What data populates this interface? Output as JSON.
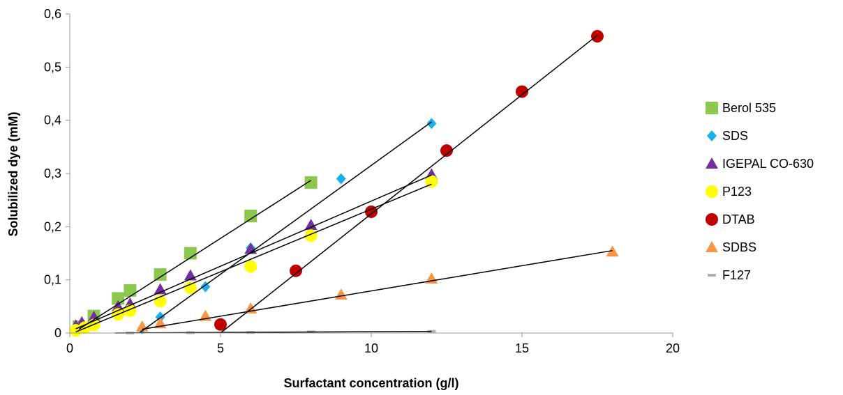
{
  "chart_data": {
    "type": "scatter",
    "title": "",
    "xlabel": "Surfactant concentration (g/l)",
    "ylabel": "Solubilized dye (mM)",
    "xlim": [
      0,
      20
    ],
    "ylim": [
      0,
      0.6
    ],
    "x_ticks": [
      0,
      5,
      10,
      15,
      20
    ],
    "x_tick_labels": [
      "0",
      "5",
      "10",
      "15",
      "20"
    ],
    "y_ticks": [
      0,
      0.1,
      0.2,
      0.3,
      0.4,
      0.5,
      0.6
    ],
    "y_tick_labels": [
      "0",
      "0,1",
      "0,2",
      "0,3",
      "0,4",
      "0,5",
      "0,6"
    ],
    "grid": false,
    "legend_position": "right",
    "series": [
      {
        "name": "Berol 535",
        "marker": "square",
        "color": "#8cc84b",
        "points": [
          [
            0.3,
            0.012
          ],
          [
            0.8,
            0.032
          ],
          [
            1.6,
            0.065
          ],
          [
            2.0,
            0.08
          ],
          [
            3.0,
            0.11
          ],
          [
            4.0,
            0.15
          ],
          [
            6.0,
            0.22
          ],
          [
            8.0,
            0.283
          ]
        ],
        "trendline": [
          [
            0.3,
            0.007
          ],
          [
            8.0,
            0.287
          ]
        ]
      },
      {
        "name": "SDS",
        "marker": "diamond",
        "color": "#1ab0ec",
        "points": [
          [
            2.4,
            0.008
          ],
          [
            3.0,
            0.03
          ],
          [
            4.5,
            0.087
          ],
          [
            6.0,
            0.16
          ],
          [
            9.0,
            0.29
          ],
          [
            12.0,
            0.394
          ]
        ],
        "trendline": [
          [
            2.3,
            0.0
          ],
          [
            12.0,
            0.397
          ]
        ]
      },
      {
        "name": "IGEPAL CO-630",
        "marker": "triangle",
        "color": "#7030a0",
        "points": [
          [
            0.2,
            0.014
          ],
          [
            0.4,
            0.02
          ],
          [
            0.8,
            0.03
          ],
          [
            1.6,
            0.05
          ],
          [
            2.0,
            0.055
          ],
          [
            3.0,
            0.082
          ],
          [
            4.0,
            0.108
          ],
          [
            6.0,
            0.158
          ],
          [
            8.0,
            0.203
          ],
          [
            12.0,
            0.298
          ]
        ],
        "trendline": [
          [
            0.2,
            0.008
          ],
          [
            12.0,
            0.297
          ]
        ]
      },
      {
        "name": "P123",
        "marker": "circle",
        "color": "#ffff00",
        "points": [
          [
            0.2,
            0.005
          ],
          [
            0.5,
            0.01
          ],
          [
            0.8,
            0.015
          ],
          [
            1.6,
            0.035
          ],
          [
            2.0,
            0.042
          ],
          [
            3.0,
            0.06
          ],
          [
            4.0,
            0.085
          ],
          [
            6.0,
            0.125
          ],
          [
            8.0,
            0.183
          ],
          [
            12.0,
            0.285
          ]
        ],
        "trendline": [
          [
            0.2,
            0.002
          ],
          [
            12.0,
            0.28
          ]
        ]
      },
      {
        "name": "DTAB",
        "marker": "circle",
        "color": "#c00000",
        "points": [
          [
            5.0,
            0.016
          ],
          [
            7.5,
            0.117
          ],
          [
            10.0,
            0.228
          ],
          [
            12.5,
            0.343
          ],
          [
            15.0,
            0.454
          ],
          [
            17.5,
            0.558
          ]
        ],
        "trendline": [
          [
            5.0,
            0.0
          ],
          [
            17.5,
            0.56
          ]
        ]
      },
      {
        "name": "SDBS",
        "marker": "triangle",
        "color": "#f79646",
        "points": [
          [
            2.4,
            0.012
          ],
          [
            3.0,
            0.018
          ],
          [
            4.5,
            0.032
          ],
          [
            6.0,
            0.046
          ],
          [
            9.0,
            0.072
          ],
          [
            12.0,
            0.102
          ],
          [
            18.0,
            0.153
          ]
        ],
        "trendline": [
          [
            2.4,
            0.007
          ],
          [
            18.0,
            0.155
          ]
        ]
      },
      {
        "name": "F127",
        "marker": "dash",
        "color": "#b0b0b0",
        "points": [
          [
            2.0,
            0.0
          ],
          [
            4.0,
            0.0005
          ],
          [
            6.0,
            0.001
          ],
          [
            8.0,
            0.002
          ],
          [
            12.0,
            0.003
          ]
        ],
        "trendline": [
          [
            1.5,
            0.0
          ],
          [
            12.0,
            0.003
          ]
        ]
      }
    ]
  }
}
